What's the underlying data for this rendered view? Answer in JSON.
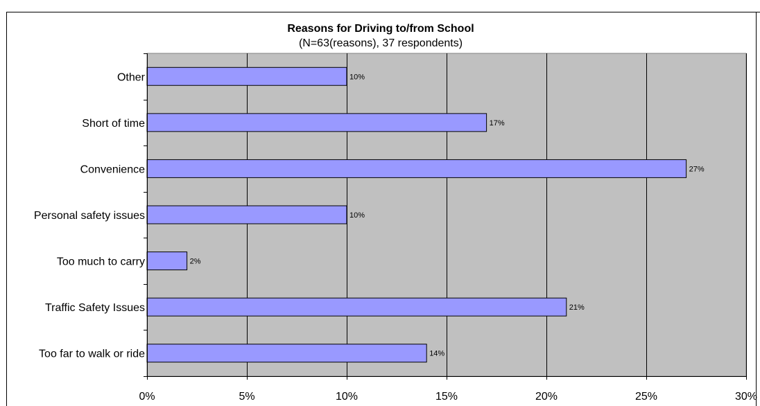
{
  "chart_data": {
    "type": "bar",
    "orientation": "horizontal",
    "title": "Reasons for Driving to/from School",
    "subtitle": "(N=63(reasons), 37 respondents)",
    "xlabel": "",
    "ylabel": "",
    "categories": [
      "Other",
      "Short of time",
      "Convenience",
      "Personal safety issues",
      "Too much to carry",
      "Traffic Safety Issues",
      "Too far to walk or ride"
    ],
    "values": [
      10,
      17,
      27,
      10,
      2,
      21,
      14
    ],
    "value_labels": [
      "10%",
      "17%",
      "27%",
      "10%",
      "2%",
      "21%",
      "14%"
    ],
    "xlim": [
      0,
      30
    ],
    "ticks": [
      0,
      5,
      10,
      15,
      20,
      25,
      30
    ],
    "tick_labels": [
      "0%",
      "5%",
      "10%",
      "15%",
      "20%",
      "25%",
      "30%"
    ],
    "grid": true,
    "legend": "none",
    "colors": {
      "plot_background": "#c0c0c0",
      "bar_fill": "#9999ff",
      "bar_stroke": "#000000",
      "frame": "#000000"
    }
  }
}
